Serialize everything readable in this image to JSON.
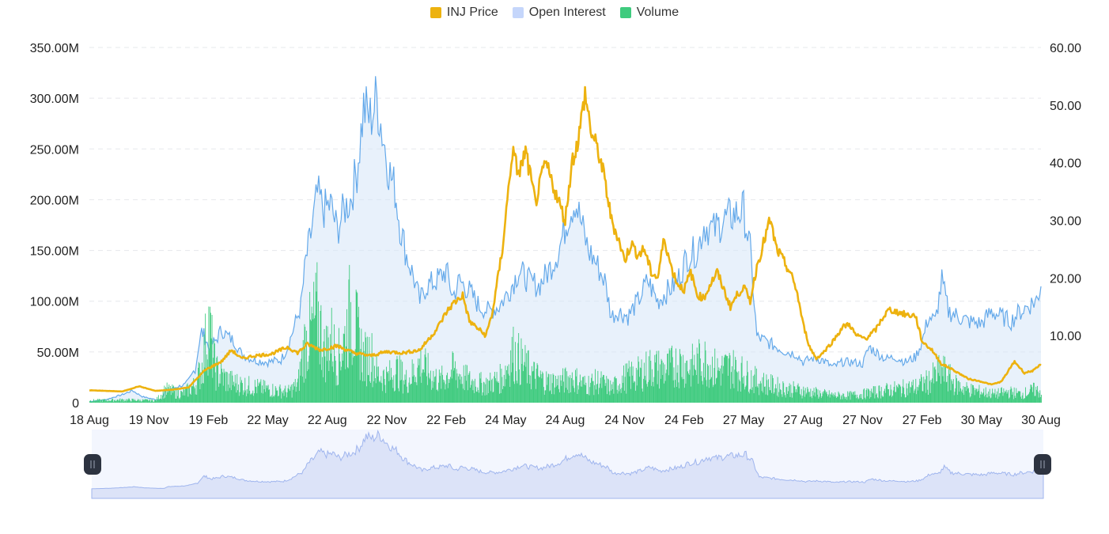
{
  "legend": {
    "price_label": "INJ Price",
    "oi_label": "Open Interest",
    "volume_label": "Volume"
  },
  "colors": {
    "price": "#EDB20F",
    "open_interest_line": "#64A9EA",
    "open_interest_fill": "#D6E6F8",
    "open_interest_legend": "#C5D6FB",
    "volume": "#3FCB7E",
    "grid": "#E6E8EB",
    "navigator_fill": "#DCE3F8",
    "navigator_line": "#9FB5EE",
    "handle": "#2D3340"
  },
  "chart_data": {
    "type": "line",
    "x_ticks": [
      "18 Aug",
      "19 Nov",
      "19 Feb",
      "22 May",
      "22 Aug",
      "22 Nov",
      "22 Feb",
      "24 May",
      "24 Aug",
      "24 Nov",
      "24 Feb",
      "27 May",
      "27 Aug",
      "27 Nov",
      "27 Feb",
      "30 May",
      "30 Aug"
    ],
    "left_axis": {
      "ticks": [
        "0",
        "50.00M",
        "100.00M",
        "150.00M",
        "200.00M",
        "250.00M",
        "300.00M",
        "350.00M"
      ],
      "range": [
        0,
        350000000
      ]
    },
    "right_axis": {
      "ticks": [
        "10.00",
        "20.00",
        "30.00",
        "40.00",
        "50.00",
        "60.00"
      ],
      "range": [
        0,
        60
      ]
    },
    "grid": "horizontal dashed",
    "legend_position": "top-center",
    "series": [
      {
        "name": "Open Interest",
        "axis": "left",
        "style": "area",
        "points": [
          [
            0,
            1
          ],
          [
            0.5,
            3
          ],
          [
            1,
            8
          ],
          [
            1.3,
            12
          ],
          [
            1.6,
            6
          ],
          [
            2,
            3
          ],
          [
            2.2,
            3
          ],
          [
            2.3,
            12
          ],
          [
            2.6,
            15
          ],
          [
            2.9,
            18
          ],
          [
            3.0,
            22
          ],
          [
            3.1,
            28
          ],
          [
            3.15,
            35
          ],
          [
            3.2,
            30
          ],
          [
            3.3,
            55
          ],
          [
            3.4,
            70
          ],
          [
            3.5,
            65
          ],
          [
            3.6,
            55
          ],
          [
            3.8,
            60
          ],
          [
            4.0,
            72
          ],
          [
            4.2,
            65
          ],
          [
            4.4,
            60
          ],
          [
            4.6,
            48
          ],
          [
            4.8,
            45
          ],
          [
            5.0,
            42
          ],
          [
            5.4,
            40
          ],
          [
            5.8,
            42
          ],
          [
            6.0,
            55
          ],
          [
            6.2,
            75
          ],
          [
            6.4,
            95
          ],
          [
            6.55,
            140
          ],
          [
            6.7,
            165
          ],
          [
            6.9,
            205
          ],
          [
            7.1,
            190
          ],
          [
            7.3,
            195
          ],
          [
            7.5,
            170
          ],
          [
            7.7,
            190
          ],
          [
            7.9,
            200
          ],
          [
            8.1,
            230
          ],
          [
            8.3,
            290
          ],
          [
            8.5,
            280
          ],
          [
            8.7,
            300
          ],
          [
            8.9,
            260
          ],
          [
            9.1,
            225
          ],
          [
            9.25,
            210
          ],
          [
            9.4,
            175
          ],
          [
            9.6,
            145
          ],
          [
            9.8,
            125
          ],
          [
            10.0,
            100
          ],
          [
            10.2,
            115
          ],
          [
            10.5,
            120
          ],
          [
            10.8,
            130
          ],
          [
            11.0,
            105
          ],
          [
            11.2,
            120
          ],
          [
            11.5,
            110
          ],
          [
            11.8,
            95
          ],
          [
            12.1,
            90
          ],
          [
            12.4,
            95
          ],
          [
            12.7,
            110
          ],
          [
            13.0,
            130
          ],
          [
            13.3,
            120
          ],
          [
            13.6,
            115
          ],
          [
            13.9,
            130
          ],
          [
            14.2,
            150
          ],
          [
            14.5,
            185
          ],
          [
            14.7,
            200
          ],
          [
            14.9,
            175
          ],
          [
            15.1,
            150
          ],
          [
            15.3,
            140
          ],
          [
            15.6,
            120
          ],
          [
            15.8,
            85
          ],
          [
            16.0,
            90
          ],
          [
            16.3,
            85
          ],
          [
            16.6,
            100
          ],
          [
            16.9,
            120
          ],
          [
            17.2,
            100
          ],
          [
            17.5,
            110
          ],
          [
            17.8,
            120
          ],
          [
            18.1,
            145
          ],
          [
            18.4,
            150
          ],
          [
            18.6,
            175
          ],
          [
            18.9,
            170
          ],
          [
            19.2,
            180
          ],
          [
            19.5,
            185
          ],
          [
            19.8,
            190
          ],
          [
            20.0,
            150
          ],
          [
            20.2,
            65
          ],
          [
            20.5,
            60
          ],
          [
            20.8,
            55
          ],
          [
            21.1,
            50
          ],
          [
            21.4,
            48
          ],
          [
            21.6,
            40
          ],
          [
            21.9,
            44
          ],
          [
            22.2,
            42
          ],
          [
            22.5,
            35
          ],
          [
            22.8,
            40
          ],
          [
            23.1,
            40
          ],
          [
            23.4,
            38
          ],
          [
            23.6,
            55
          ],
          [
            23.8,
            50
          ],
          [
            24.1,
            43
          ],
          [
            24.4,
            45
          ],
          [
            24.7,
            40
          ],
          [
            25.0,
            45
          ],
          [
            25.2,
            60
          ],
          [
            25.4,
            85
          ],
          [
            25.6,
            80
          ],
          [
            25.8,
            120
          ],
          [
            26.0,
            90
          ],
          [
            26.3,
            85
          ],
          [
            26.6,
            80
          ],
          [
            27.0,
            78
          ],
          [
            27.3,
            90
          ],
          [
            27.6,
            85
          ],
          [
            27.9,
            80
          ],
          [
            28.1,
            88
          ],
          [
            28.4,
            95
          ],
          [
            28.7,
            102
          ],
          [
            28.8,
            118
          ]
        ]
      },
      {
        "name": "INJ Price",
        "axis": "right",
        "style": "line",
        "points": [
          [
            0,
            0.5
          ],
          [
            1,
            0.3
          ],
          [
            1.5,
            1.2
          ],
          [
            2,
            0.4
          ],
          [
            2.5,
            0.6
          ],
          [
            3,
            1.0
          ],
          [
            3.5,
            4.0
          ],
          [
            4,
            5.5
          ],
          [
            4.3,
            7.5
          ],
          [
            4.6,
            6.0
          ],
          [
            5.0,
            6.5
          ],
          [
            5.5,
            6.8
          ],
          [
            6.0,
            8.0
          ],
          [
            6.3,
            7.0
          ],
          [
            6.6,
            8.5
          ],
          [
            7.0,
            7.5
          ],
          [
            7.5,
            8.2
          ],
          [
            8.0,
            7.0
          ],
          [
            8.5,
            6.5
          ],
          [
            9.0,
            7.2
          ],
          [
            9.5,
            7.0
          ],
          [
            10.0,
            7.5
          ],
          [
            10.5,
            11.0
          ],
          [
            10.8,
            14.0
          ],
          [
            11.0,
            15.5
          ],
          [
            11.3,
            17.0
          ],
          [
            11.5,
            12.5
          ],
          [
            12.0,
            10.0
          ],
          [
            12.2,
            14.0
          ],
          [
            12.5,
            25.0
          ],
          [
            12.8,
            42.0
          ],
          [
            13.0,
            38.0
          ],
          [
            13.2,
            42.0
          ],
          [
            13.5,
            33.0
          ],
          [
            13.8,
            40.0
          ],
          [
            14.1,
            35.0
          ],
          [
            14.4,
            30.0
          ],
          [
            14.6,
            40.0
          ],
          [
            14.8,
            44.0
          ],
          [
            15.0,
            52.0
          ],
          [
            15.2,
            45.0
          ],
          [
            15.4,
            42.0
          ],
          [
            15.6,
            37.0
          ],
          [
            15.8,
            30.0
          ],
          [
            16.0,
            27.0
          ],
          [
            16.2,
            23.0
          ],
          [
            16.4,
            26.0
          ],
          [
            16.6,
            24.0
          ],
          [
            16.8,
            25.0
          ],
          [
            17.0,
            21.0
          ],
          [
            17.2,
            20.0
          ],
          [
            17.4,
            27.0
          ],
          [
            17.6,
            22.0
          ],
          [
            17.8,
            19.0
          ],
          [
            18.0,
            18.0
          ],
          [
            18.2,
            21.0
          ],
          [
            18.4,
            17.0
          ],
          [
            18.6,
            16.5
          ],
          [
            18.8,
            19.0
          ],
          [
            19.0,
            21.0
          ],
          [
            19.2,
            18.0
          ],
          [
            19.4,
            15.0
          ],
          [
            19.6,
            17.0
          ],
          [
            19.8,
            18.5
          ],
          [
            20.0,
            16.0
          ],
          [
            20.2,
            22.0
          ],
          [
            20.4,
            26.0
          ],
          [
            20.6,
            30.0
          ],
          [
            20.8,
            25.0
          ],
          [
            21.0,
            23.0
          ],
          [
            21.2,
            21.0
          ],
          [
            21.4,
            18.0
          ],
          [
            21.6,
            12.0
          ],
          [
            21.8,
            8.0
          ],
          [
            22.0,
            6.0
          ],
          [
            22.2,
            7.0
          ],
          [
            22.5,
            9.0
          ],
          [
            22.8,
            11.5
          ],
          [
            23.0,
            12.0
          ],
          [
            23.2,
            10.0
          ],
          [
            23.5,
            9.5
          ],
          [
            23.8,
            11.0
          ],
          [
            24.0,
            13.0
          ],
          [
            24.2,
            14.5
          ],
          [
            24.5,
            14.0
          ],
          [
            24.8,
            13.5
          ],
          [
            25.0,
            13.5
          ],
          [
            25.2,
            9.0
          ],
          [
            25.5,
            7.5
          ],
          [
            25.8,
            5.0
          ],
          [
            26.0,
            4.5
          ],
          [
            26.3,
            3.5
          ],
          [
            26.6,
            2.5
          ],
          [
            27.0,
            2.0
          ],
          [
            27.3,
            1.5
          ],
          [
            27.6,
            2.0
          ],
          [
            28.0,
            5.5
          ],
          [
            28.3,
            3.5
          ],
          [
            28.6,
            4.0
          ],
          [
            28.8,
            5.0
          ]
        ]
      },
      {
        "name": "Volume",
        "axis": "left",
        "style": "bar",
        "points": [
          [
            0,
            3
          ],
          [
            1,
            4
          ],
          [
            2,
            3
          ],
          [
            2.3,
            18
          ],
          [
            2.8,
            12
          ],
          [
            3.2,
            25
          ],
          [
            3.4,
            50
          ],
          [
            3.6,
            110
          ],
          [
            3.8,
            45
          ],
          [
            4.2,
            30
          ],
          [
            4.6,
            25
          ],
          [
            5.0,
            22
          ],
          [
            5.5,
            18
          ],
          [
            6.0,
            15
          ],
          [
            6.3,
            25
          ],
          [
            6.5,
            80
          ],
          [
            6.7,
            100
          ],
          [
            6.9,
            125
          ],
          [
            7.1,
            70
          ],
          [
            7.3,
            90
          ],
          [
            7.5,
            60
          ],
          [
            7.7,
            85
          ],
          [
            7.9,
            130
          ],
          [
            8.1,
            95
          ],
          [
            8.3,
            60
          ],
          [
            8.5,
            70
          ],
          [
            8.7,
            40
          ],
          [
            9.0,
            35
          ],
          [
            9.3,
            45
          ],
          [
            9.6,
            30
          ],
          [
            10.0,
            55
          ],
          [
            10.3,
            40
          ],
          [
            10.6,
            30
          ],
          [
            11.0,
            45
          ],
          [
            11.5,
            30
          ],
          [
            12.0,
            25
          ],
          [
            12.5,
            35
          ],
          [
            12.8,
            70
          ],
          [
            13.1,
            55
          ],
          [
            13.4,
            40
          ],
          [
            13.8,
            30
          ],
          [
            14.2,
            28
          ],
          [
            14.6,
            35
          ],
          [
            15.0,
            25
          ],
          [
            15.4,
            30
          ],
          [
            15.8,
            20
          ],
          [
            16.2,
            35
          ],
          [
            16.6,
            40
          ],
          [
            17.0,
            50
          ],
          [
            17.4,
            45
          ],
          [
            17.8,
            55
          ],
          [
            18.2,
            50
          ],
          [
            18.6,
            60
          ],
          [
            19.0,
            45
          ],
          [
            19.4,
            50
          ],
          [
            19.8,
            40
          ],
          [
            20.2,
            30
          ],
          [
            20.6,
            25
          ],
          [
            21.0,
            20
          ],
          [
            21.4,
            18
          ],
          [
            21.8,
            15
          ],
          [
            22.2,
            12
          ],
          [
            22.6,
            10
          ],
          [
            23.0,
            10
          ],
          [
            23.4,
            12
          ],
          [
            23.8,
            15
          ],
          [
            24.2,
            18
          ],
          [
            24.6,
            20
          ],
          [
            25.0,
            22
          ],
          [
            25.4,
            30
          ],
          [
            25.8,
            45
          ],
          [
            26.2,
            25
          ],
          [
            26.6,
            18
          ],
          [
            27.0,
            15
          ],
          [
            27.4,
            12
          ],
          [
            27.8,
            15
          ],
          [
            28.2,
            12
          ],
          [
            28.6,
            18
          ],
          [
            28.8,
            15
          ]
        ]
      }
    ]
  },
  "navigator": {
    "left_handle_icon": "grip-handle-icon",
    "right_handle_icon": "grip-handle-icon"
  }
}
